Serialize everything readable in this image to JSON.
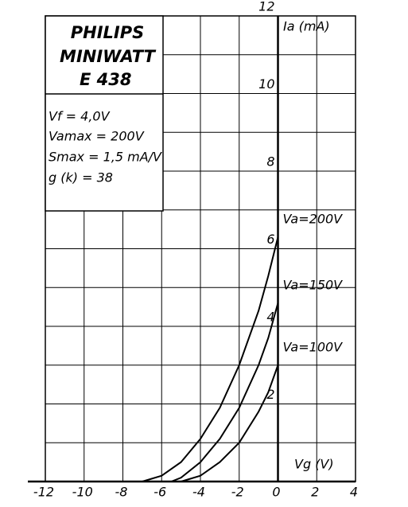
{
  "chart_data": {
    "type": "line",
    "annotations": [
      "PHILIPS",
      "MINIWATT",
      "E 438",
      "Vf = 4,0V",
      "Vamax = 200V",
      "Smax = 1,5 mA/V",
      "g (k) = 38"
    ],
    "x_label": "Vg (V)",
    "y_label": "Ia (mA)",
    "series": [
      {
        "name": "Va=200V",
        "color": "#000000",
        "x": [
          -7,
          -6,
          -5,
          -4,
          -3,
          -2,
          -1,
          -0.5,
          0
        ],
        "values": [
          0,
          0.15,
          0.5,
          1.1,
          1.9,
          3.0,
          4.4,
          5.3,
          6.3
        ]
      },
      {
        "name": "Va=150V",
        "color": "#000000",
        "x": [
          -5.5,
          -5,
          -4,
          -3,
          -2,
          -1,
          -0.5,
          0
        ],
        "values": [
          0,
          0.1,
          0.5,
          1.1,
          1.9,
          3.0,
          3.7,
          4.6
        ]
      },
      {
        "name": "Va=100V",
        "color": "#000000",
        "x": [
          -5,
          -4,
          -3,
          -2,
          -1,
          -0.5,
          0
        ],
        "values": [
          0,
          0.15,
          0.5,
          1.0,
          1.8,
          2.3,
          3.0
        ]
      }
    ],
    "xlim": [
      -12,
      4
    ],
    "ylim": [
      0,
      12
    ],
    "xticks": [
      -12,
      -10,
      -8,
      -6,
      -4,
      -2,
      0,
      2,
      4
    ],
    "yticks": [
      2,
      4,
      6,
      8,
      10,
      12
    ],
    "ygrid": [
      1,
      2,
      3,
      4,
      5,
      6,
      7,
      8,
      9,
      10,
      11,
      12
    ],
    "grid": true
  }
}
